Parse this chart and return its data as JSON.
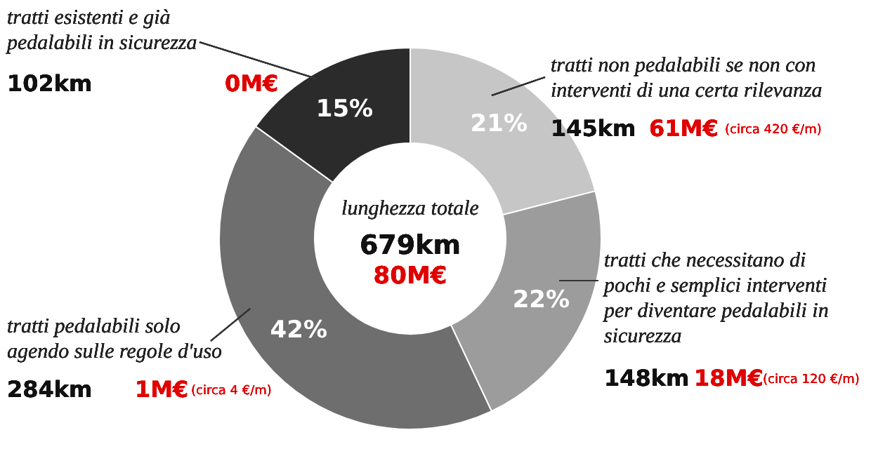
{
  "chart_data": {
    "type": "donut",
    "categories": [
      "tratti non pedalabili se non con interventi di una certa rilevanza",
      "tratti che necessitano di pochi e semplici interventi per diventare pedalabili in sicurezza",
      "tratti pedalabili solo agendo sulle regole d'uso",
      "tratti esistenti e già pedalabili in sicurezza"
    ],
    "values": [
      21,
      22,
      42,
      15
    ],
    "colors": [
      "#c6c6c6",
      "#9c9c9c",
      "#6e6e6e",
      "#2b2b2b"
    ],
    "value_labels": [
      "21%",
      "22%",
      "42%",
      "15%"
    ],
    "annotations": [
      "145km",
      "61M€",
      "(circa 420 €/m)",
      "148km",
      "18M€",
      "(circa 120 €/m)",
      "284km",
      "1M€",
      "(circa 4 €/m)",
      "102km",
      "0M€",
      "lunghezza totale",
      "679km",
      "80M€"
    ]
  }
}
